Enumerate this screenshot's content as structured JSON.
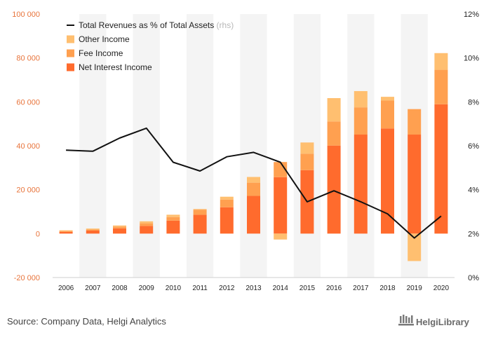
{
  "chart_data": {
    "type": "bar",
    "stacked": true,
    "categories": [
      "2006",
      "2007",
      "2008",
      "2009",
      "2010",
      "2011",
      "2012",
      "2013",
      "2014",
      "2015",
      "2016",
      "2017",
      "2018",
      "2019",
      "2020"
    ],
    "series": [
      {
        "name": "Net Interest Income",
        "color": "#ff6b2d",
        "values": [
          800,
          1400,
          2400,
          3500,
          5900,
          8600,
          12000,
          17200,
          25700,
          28900,
          40100,
          45100,
          47900,
          45100,
          58900
        ]
      },
      {
        "name": "Fee Income",
        "color": "#ffa050",
        "values": [
          400,
          500,
          800,
          1200,
          1600,
          2300,
          3500,
          6000,
          6900,
          7500,
          11000,
          12400,
          12700,
          11600,
          15700
        ]
      },
      {
        "name": "Other Income",
        "color": "#ffbf70",
        "values": [
          300,
          400,
          500,
          900,
          1100,
          300,
          1300,
          2600,
          -2700,
          5100,
          10600,
          7400,
          1700,
          -12500,
          7600
        ]
      },
      {
        "name": "Total Revenues as % of Total Assets",
        "legend_suffix": "(rhs)",
        "color": "#111111",
        "axis": "right",
        "values": [
          5.8,
          5.75,
          6.35,
          6.8,
          5.25,
          4.85,
          5.5,
          5.7,
          5.25,
          3.45,
          3.95,
          3.45,
          2.9,
          1.8,
          2.8
        ]
      }
    ],
    "legend_order": [
      "Total Revenues as % of Total Assets",
      "Other Income",
      "Fee Income",
      "Net Interest Income"
    ],
    "ylim": [
      -20000,
      100000
    ],
    "y_ticks": [
      "-20 000",
      "0",
      "20 000",
      "40 000",
      "60 000",
      "80 000",
      "100 000"
    ],
    "y2lim": [
      0,
      12
    ],
    "y2_ticks": [
      "0%",
      "2%",
      "4%",
      "6%",
      "8%",
      "10%",
      "12%"
    ],
    "grid": false,
    "legend_position": "top-left"
  },
  "footer": {
    "source": "Source: Company Data, Helgi Analytics",
    "brand": "HelgiLibrary"
  }
}
